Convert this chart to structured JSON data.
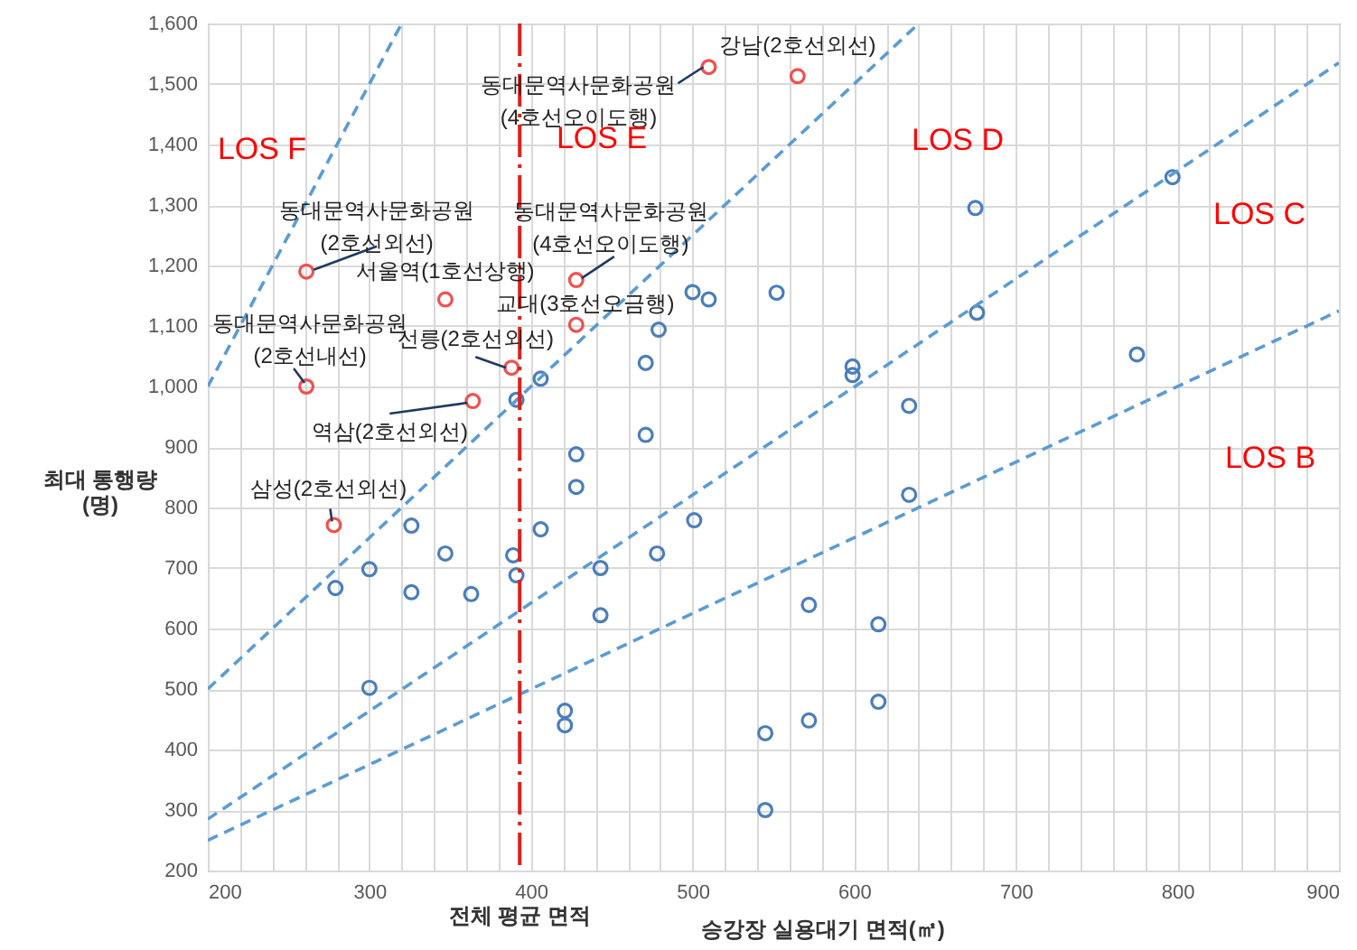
{
  "chart_data": {
    "type": "scatter",
    "xlabel": "승강장 실용대기 면적(㎡)",
    "ylabel": "최대 통행량\n(명)",
    "xlim": [
      200,
      900
    ],
    "ylim": [
      200,
      1600
    ],
    "xticks": [
      200,
      {
        "value": 220,
        "label": null
      },
      {
        "value": 240,
        "label": null
      },
      {
        "value": 260,
        "label": null
      },
      {
        "value": 280,
        "label": null
      },
      300,
      {
        "value": 320,
        "label": null
      },
      {
        "value": 340,
        "label": null
      },
      {
        "value": 360,
        "label": null
      },
      {
        "value": 380,
        "label": null
      },
      400,
      {
        "value": 420,
        "label": null
      },
      {
        "value": 440,
        "label": null
      },
      {
        "value": 460,
        "label": null
      },
      {
        "value": 480,
        "label": null
      },
      500,
      {
        "value": 520,
        "label": null
      },
      {
        "value": 540,
        "label": null
      },
      {
        "value": 560,
        "label": null
      },
      {
        "value": 580,
        "label": null
      },
      600,
      {
        "value": 620,
        "label": null
      },
      {
        "value": 640,
        "label": null
      },
      {
        "value": 660,
        "label": null
      },
      {
        "value": 680,
        "label": null
      },
      700,
      {
        "value": 720,
        "label": null
      },
      {
        "value": 740,
        "label": null
      },
      {
        "value": 760,
        "label": null
      },
      {
        "value": 780,
        "label": null
      },
      800,
      {
        "value": 820,
        "label": null
      },
      {
        "value": 840,
        "label": null
      },
      {
        "value": 860,
        "label": null
      },
      {
        "value": 880,
        "label": null
      },
      900
    ],
    "yticks": [
      200,
      300,
      400,
      500,
      600,
      700,
      800,
      900,
      {
        "value": 1000,
        "label": "1,000"
      },
      {
        "value": 1100,
        "label": "1,100"
      },
      {
        "value": 1200,
        "label": "1,200"
      },
      {
        "value": 1300,
        "label": "1,300"
      },
      {
        "value": 1400,
        "label": "1,400"
      },
      {
        "value": 1500,
        "label": "1,500"
      },
      {
        "value": 1600,
        "label": "1,600"
      }
    ],
    "grid": true,
    "series": [
      {
        "marker": "circle",
        "color": "#f0504f",
        "x": [
          510,
          565,
          261,
          347,
          428,
          428,
          261,
          388,
          364,
          278
        ],
        "values": [
          1528,
          1513,
          1190,
          1144,
          1176,
          1102,
          1000,
          1031,
          976,
          771
        ]
      },
      {
        "marker": "circle",
        "color": "#4a7ebb",
        "x": [
          500,
          510,
          552,
          479,
          471,
          406,
          391,
          471,
          428,
          428,
          326,
          406,
          501,
          347,
          389,
          300,
          443,
          478,
          279,
          391,
          326,
          363,
          443,
          300,
          421,
          421,
          545,
          545,
          634,
          572,
          615,
          615,
          572,
          797,
          675,
          676,
          599,
          599,
          634,
          775
        ],
        "values": [
          1156,
          1144,
          1155,
          1094,
          1039,
          1013,
          978,
          920,
          888,
          834,
          770,
          764,
          779,
          724,
          721,
          698,
          700,
          724,
          667,
          688,
          660,
          657,
          622,
          502,
          464,
          440,
          427,
          300,
          821,
          639,
          607,
          479,
          448,
          1346,
          1295,
          1122,
          1033,
          1019,
          968,
          1053
        ]
      },
      {
        "type": "line",
        "color": "#5b9bd5",
        "line_style": "dashed",
        "x": [
          200,
          320
        ],
        "values": [
          1000,
          1600
        ]
      },
      {
        "type": "line",
        "color": "#5b9bd5",
        "line_style": "dashed",
        "x": [
          200,
          640
        ],
        "values": [
          500,
          1600
        ]
      },
      {
        "type": "line",
        "color": "#5b9bd5",
        "line_style": "dashed",
        "x": [
          200,
          900
        ],
        "values": [
          285,
          1535
        ]
      },
      {
        "type": "line",
        "color": "#5b9bd5",
        "line_style": "dashed",
        "x": [
          200,
          900
        ],
        "values": [
          250,
          1125
        ]
      }
    ],
    "ref_lines": [
      {
        "axis": "x",
        "value": 393,
        "label": "전체 평균 면적",
        "color": "#e0201b",
        "line_style": "dashed"
      }
    ],
    "annotations": [
      "LOS F",
      "LOS E",
      "LOS D",
      "LOS C",
      "LOS B",
      {
        "text": "강남(2호선외선)",
        "x": 565,
        "y": 1513
      },
      {
        "text": "동대문역사문화공원\n(4호선오이도행)",
        "x": 510,
        "y": 1528
      },
      {
        "text": "동대문역사문화공원\n(2호선외선)",
        "x": 261,
        "y": 1190
      },
      {
        "text": "서울역(1호선상행)",
        "x": 347,
        "y": 1144
      },
      {
        "text": "동대문역사문화공원\n(4호선오이도행)",
        "x": 428,
        "y": 1176
      },
      {
        "text": "교대(3호선오금행)",
        "x": 428,
        "y": 1102
      },
      {
        "text": "동대문역사문화공원\n(2호선내선)",
        "x": 261,
        "y": 1000
      },
      {
        "text": "선릉(2호선외선)",
        "x": 388,
        "y": 1031
      },
      {
        "text": "역삼(2호선외선)",
        "x": 364,
        "y": 976
      },
      {
        "text": "삼성(2호선외선)",
        "x": 278,
        "y": 771
      }
    ]
  }
}
